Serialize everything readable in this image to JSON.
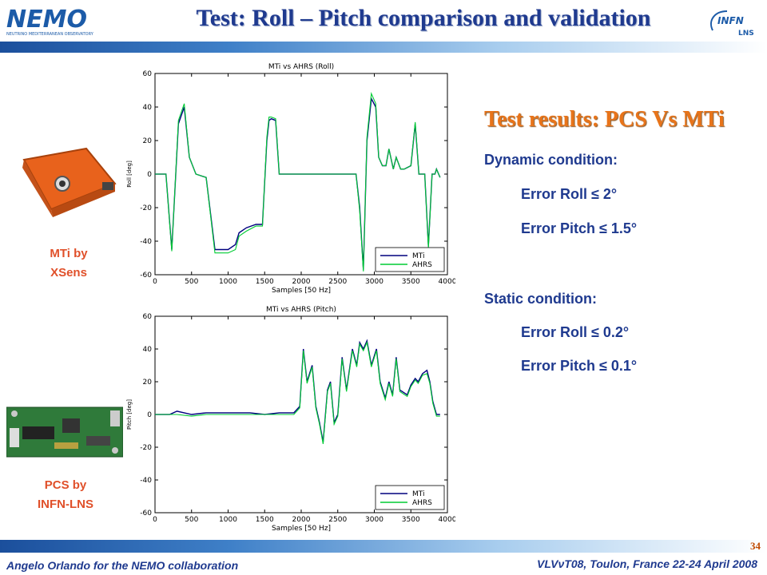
{
  "header": {
    "title": "Test: Roll – Pitch comparison and validation",
    "logo_left_text": "NEMO",
    "logo_left_subtext": "NEUTRINO MEDITERRANEAN OBSERVATORY",
    "logo_right_text": "INFN",
    "logo_right_subtext": "LNS"
  },
  "devices": {
    "mti_caption_line1": "MTi by",
    "mti_caption_line2": "XSens",
    "pcs_caption_line1": "PCS by",
    "pcs_caption_line2": "INFN-LNS"
  },
  "results": {
    "title": "Test results: PCS Vs MTi",
    "dynamic_label": "Dynamic condition:",
    "dynamic_roll": "Error Roll ≤ 2°",
    "dynamic_pitch": "Error Pitch ≤ 1.5°",
    "static_label": "Static condition:",
    "static_roll": "Error Roll ≤ 0.2°",
    "static_pitch": "Error Pitch ≤ 0.1°"
  },
  "footer": {
    "page_number": "34",
    "author": "Angelo Orlando for the NEMO collaboration",
    "conference": "VLVνT08, Toulon, France 22-24 April 2008"
  },
  "colors": {
    "mti": "#00007f",
    "ahrs": "#00cc33",
    "title": "#1f3a8f",
    "accent": "#e8741a"
  },
  "chart_data": [
    {
      "type": "line",
      "title": "MTi vs AHRS (Roll)",
      "xlabel": "Samples [50 Hz]",
      "ylabel": "Roll [deg]",
      "xlim": [
        0,
        4000
      ],
      "ylim": [
        -60,
        60
      ],
      "xticks": [
        0,
        500,
        1000,
        1500,
        2000,
        2500,
        3000,
        3500,
        4000
      ],
      "yticks": [
        -60,
        -40,
        -20,
        0,
        20,
        40,
        60
      ],
      "legend": "bottom-right",
      "series": [
        {
          "name": "MTi",
          "x": [
            0,
            150,
            230,
            320,
            400,
            470,
            560,
            700,
            820,
            1000,
            1100,
            1150,
            1250,
            1380,
            1470,
            1530,
            1560,
            1590,
            1650,
            1700,
            1760,
            1950,
            2100,
            2250,
            2400,
            2550,
            2750,
            2800,
            2850,
            2900,
            2960,
            3020,
            3060,
            3110,
            3160,
            3200,
            3260,
            3300,
            3360,
            3410,
            3500,
            3560,
            3610,
            3690,
            3740,
            3790,
            3830,
            3850,
            3900
          ],
          "y": [
            0,
            0,
            -45,
            30,
            40,
            10,
            0,
            -2,
            -45,
            -45,
            -42,
            -35,
            -32,
            -30,
            -30,
            20,
            32,
            33,
            32,
            0,
            0,
            0,
            0,
            0,
            0,
            0,
            0,
            -20,
            -57,
            20,
            45,
            40,
            10,
            5,
            5,
            15,
            3,
            10,
            3,
            3,
            5,
            30,
            0,
            0,
            -43,
            0,
            0,
            3,
            -2
          ]
        },
        {
          "name": "AHRS",
          "x": [
            0,
            150,
            230,
            320,
            400,
            470,
            560,
            700,
            820,
            1000,
            1100,
            1150,
            1250,
            1380,
            1470,
            1530,
            1560,
            1590,
            1650,
            1700,
            1760,
            1950,
            2100,
            2250,
            2400,
            2550,
            2750,
            2800,
            2850,
            2900,
            2960,
            3020,
            3060,
            3110,
            3160,
            3200,
            3260,
            3300,
            3360,
            3410,
            3500,
            3560,
            3610,
            3690,
            3740,
            3790,
            3830,
            3850,
            3900
          ],
          "y": [
            0,
            0,
            -46,
            32,
            42,
            10,
            0,
            -2,
            -47,
            -47,
            -45,
            -37,
            -34,
            -31,
            -31,
            22,
            34,
            34,
            33,
            0,
            0,
            0,
            0,
            0,
            0,
            0,
            0,
            -22,
            -58,
            22,
            48,
            42,
            10,
            5,
            5,
            15,
            3,
            10,
            3,
            3,
            5,
            31,
            0,
            0,
            -44,
            0,
            0,
            3,
            -2
          ]
        }
      ]
    },
    {
      "type": "line",
      "title": "MTi vs AHRS (Pitch)",
      "xlabel": "Samples [50 Hz]",
      "ylabel": "Pitch [deg]",
      "xlim": [
        0,
        4000
      ],
      "ylim": [
        -60,
        60
      ],
      "xticks": [
        0,
        500,
        1000,
        1500,
        2000,
        2500,
        3000,
        3500,
        4000
      ],
      "yticks": [
        -60,
        -40,
        -20,
        0,
        20,
        40,
        60
      ],
      "legend": "bottom-right",
      "series": [
        {
          "name": "MTi",
          "x": [
            0,
            200,
            300,
            500,
            700,
            900,
            1100,
            1300,
            1500,
            1700,
            1900,
            1980,
            2030,
            2080,
            2150,
            2200,
            2250,
            2300,
            2360,
            2400,
            2450,
            2500,
            2560,
            2620,
            2700,
            2760,
            2800,
            2850,
            2900,
            2960,
            3030,
            3080,
            3150,
            3200,
            3250,
            3300,
            3350,
            3450,
            3500,
            3560,
            3600,
            3660,
            3720,
            3760,
            3800,
            3850,
            3900
          ],
          "y": [
            0,
            0,
            2,
            0,
            1,
            1,
            1,
            1,
            0,
            1,
            1,
            5,
            40,
            20,
            30,
            5,
            -5,
            -17,
            15,
            20,
            -5,
            0,
            35,
            15,
            40,
            30,
            44,
            40,
            45,
            30,
            40,
            20,
            10,
            20,
            12,
            35,
            15,
            12,
            18,
            22,
            20,
            25,
            27,
            20,
            8,
            0,
            0
          ]
        },
        {
          "name": "AHRS",
          "x": [
            0,
            200,
            300,
            500,
            700,
            900,
            1100,
            1300,
            1500,
            1700,
            1900,
            1980,
            2030,
            2080,
            2150,
            2200,
            2250,
            2300,
            2360,
            2400,
            2450,
            2500,
            2560,
            2620,
            2700,
            2760,
            2800,
            2850,
            2900,
            2960,
            3030,
            3080,
            3150,
            3200,
            3250,
            3300,
            3350,
            3450,
            3500,
            3560,
            3600,
            3660,
            3720,
            3760,
            3800,
            3850,
            3900
          ],
          "y": [
            0,
            0,
            0,
            -1,
            0,
            0,
            0,
            0,
            0,
            0,
            0,
            4,
            39,
            19,
            29,
            4,
            -6,
            -18,
            14,
            19,
            -6,
            -1,
            34,
            14,
            39,
            29,
            43,
            39,
            44,
            29,
            39,
            19,
            9,
            19,
            11,
            34,
            14,
            11,
            17,
            21,
            19,
            24,
            25,
            19,
            7,
            -1,
            -1
          ]
        }
      ]
    }
  ]
}
